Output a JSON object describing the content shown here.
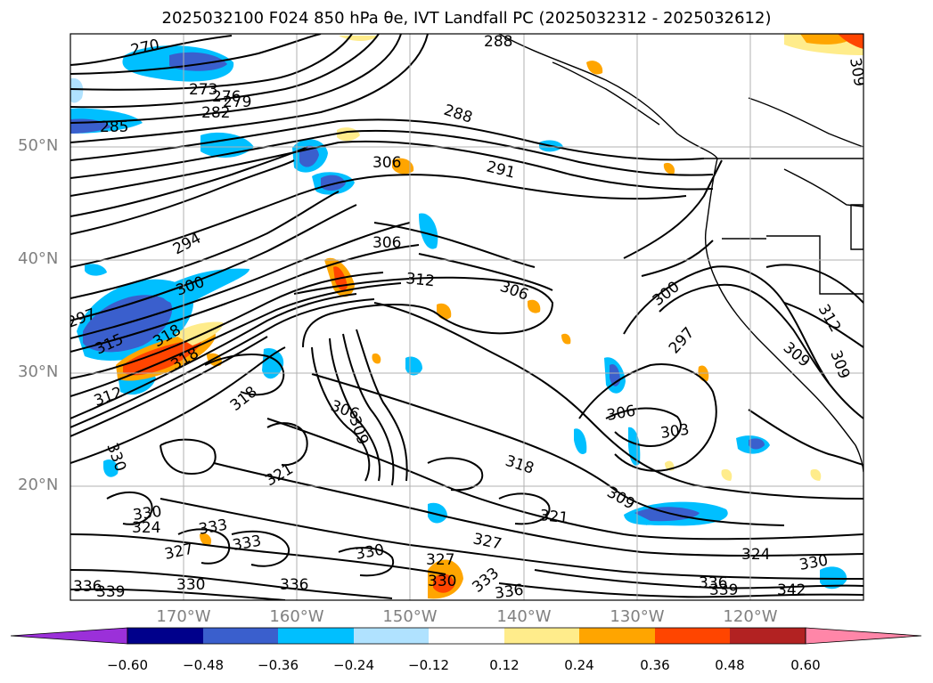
{
  "title": "2025032100 F024 850 hPa θe, IVT Landfall PC (2025032312 - 2025032612)",
  "map": {
    "lat_labels": [
      "50°N",
      "40°N",
      "30°N",
      "20°N"
    ],
    "lon_labels": [
      "170°W",
      "160°W",
      "150°W",
      "140°W",
      "130°W",
      "120°W"
    ],
    "contour_labels": [
      "270",
      "273",
      "276",
      "279",
      "282",
      "285",
      "288",
      "288",
      "291",
      "294",
      "297",
      "300",
      "300",
      "297",
      "303",
      "306",
      "306",
      "306",
      "306",
      "306",
      "309",
      "309",
      "309",
      "309",
      "312",
      "312",
      "315",
      "318",
      "318",
      "318",
      "318",
      "321",
      "321",
      "324",
      "324",
      "327",
      "327",
      "327",
      "330",
      "330",
      "330",
      "330",
      "330",
      "330",
      "333",
      "333",
      "333",
      "336",
      "336",
      "336",
      "336",
      "339",
      "339",
      "342",
      "309",
      "312"
    ]
  },
  "colorbar": {
    "ticks": [
      "−0.60",
      "−0.48",
      "−0.36",
      "−0.24",
      "−0.12",
      "0.12",
      "0.24",
      "0.36",
      "0.48",
      "0.60"
    ],
    "colors": [
      "#9b30d9",
      "#00008b",
      "#3a5fcd",
      "#00bfff",
      "#b0e2ff",
      "#ffffff",
      "#ffec8b",
      "#ffa500",
      "#ff4500",
      "#b22222",
      "#ff86a8"
    ],
    "extend": "both"
  }
}
